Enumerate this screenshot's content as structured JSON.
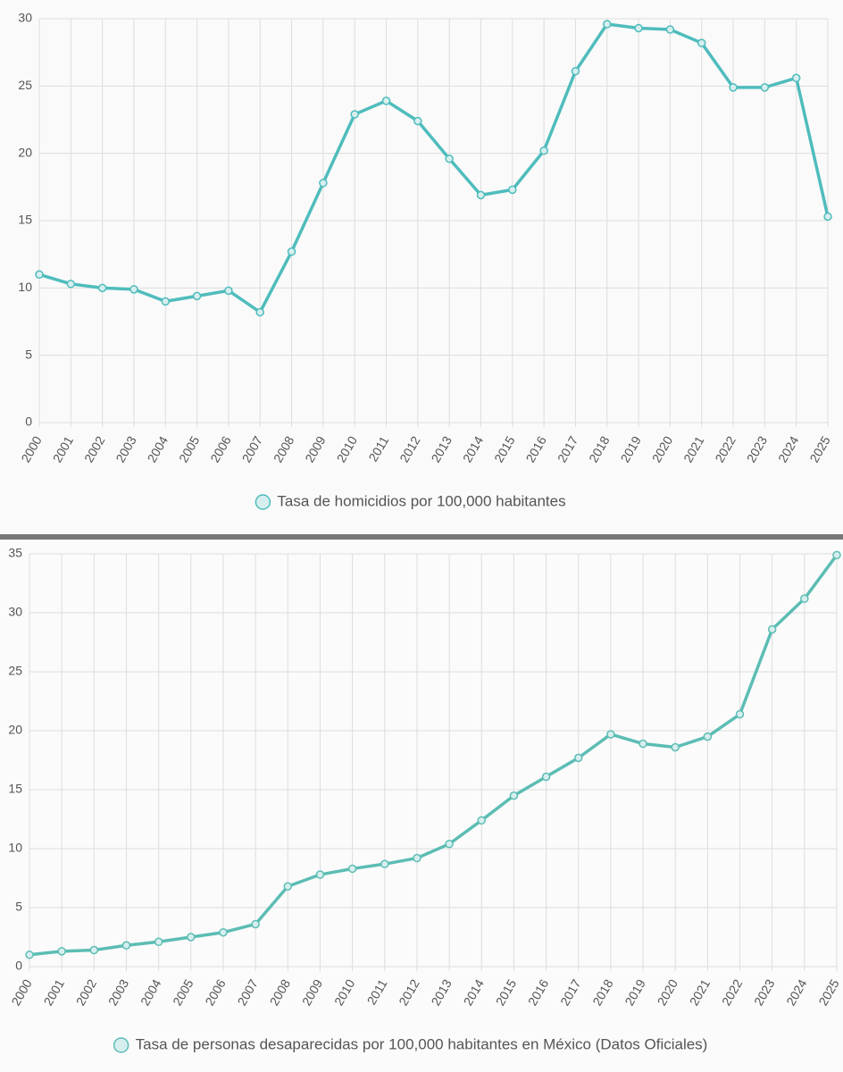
{
  "chart_data": [
    {
      "type": "line",
      "x": [
        "2000",
        "2001",
        "2002",
        "2003",
        "2004",
        "2005",
        "2006",
        "2007",
        "2008",
        "2009",
        "2010",
        "2011",
        "2012",
        "2013",
        "2014",
        "2015",
        "2016",
        "2017",
        "2018",
        "2019",
        "2020",
        "2021",
        "2022",
        "2023",
        "2024",
        "2025"
      ],
      "series": [
        {
          "name": "Tasa de homicidios por 100,000 habitantes",
          "color": "#4fbcbc",
          "values": [
            11.0,
            10.3,
            10.0,
            9.9,
            9.0,
            9.4,
            9.8,
            8.2,
            12.7,
            17.8,
            22.9,
            23.9,
            22.4,
            19.6,
            16.9,
            17.3,
            20.2,
            26.1,
            29.6,
            29.3,
            29.2,
            28.2,
            24.9,
            24.9,
            25.6,
            15.3
          ]
        }
      ],
      "ylim": [
        0,
        30
      ],
      "yticks": [
        0,
        5,
        10,
        15,
        20,
        25,
        30
      ],
      "grid": true
    },
    {
      "type": "line",
      "x": [
        "2000",
        "2001",
        "2002",
        "2003",
        "2004",
        "2005",
        "2006",
        "2007",
        "2008",
        "2009",
        "2010",
        "2011",
        "2012",
        "2013",
        "2014",
        "2015",
        "2016",
        "2017",
        "2018",
        "2019",
        "2020",
        "2021",
        "2022",
        "2023",
        "2024",
        "2025"
      ],
      "series": [
        {
          "name": "Tasa de personas desaparecidas por 100,000 habitantes en México (Datos Oficiales)",
          "color": "#5cbdb4",
          "values": [
            1.0,
            1.3,
            1.4,
            1.8,
            2.1,
            2.5,
            2.9,
            3.6,
            6.8,
            7.8,
            8.3,
            8.7,
            9.2,
            10.4,
            12.4,
            14.5,
            16.1,
            17.7,
            19.7,
            18.9,
            18.6,
            19.5,
            21.4,
            28.6,
            31.2,
            34.9
          ]
        }
      ],
      "ylim": [
        0,
        35
      ],
      "yticks": [
        0,
        5,
        10,
        15,
        20,
        25,
        30,
        35
      ],
      "grid": true
    }
  ]
}
